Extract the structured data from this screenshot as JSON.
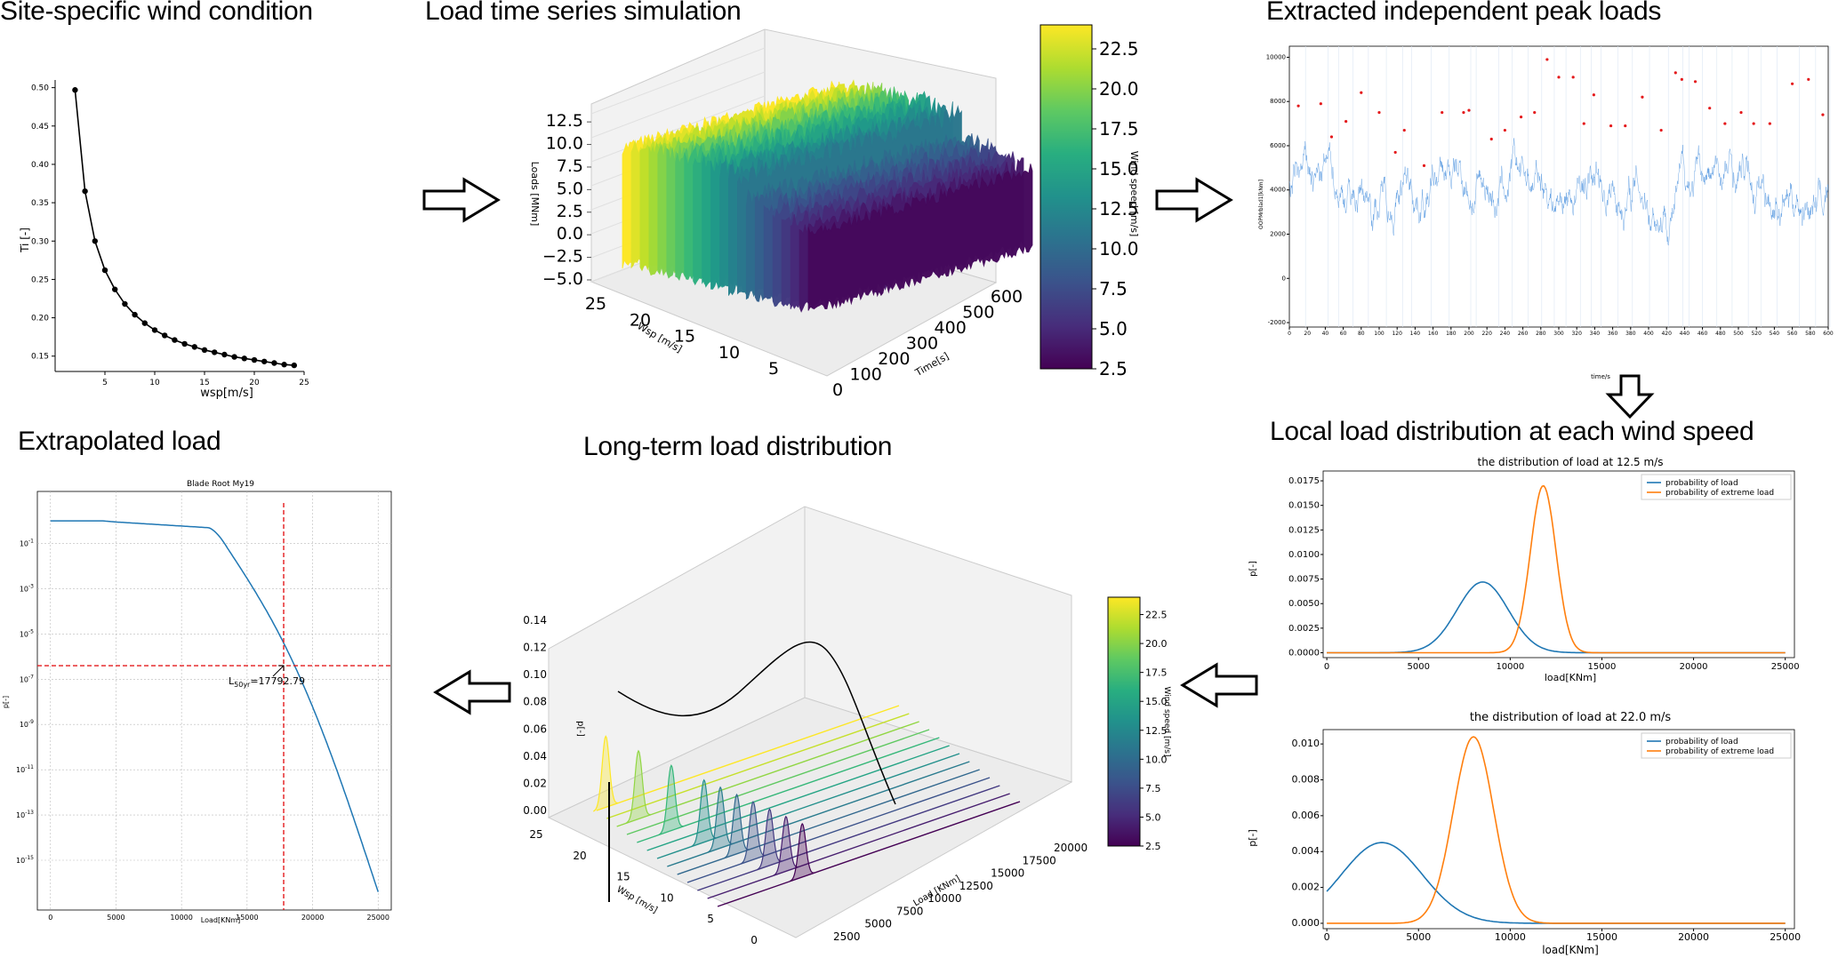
{
  "titles": {
    "wind": "Site-specific wind condition",
    "timeseries": "Load time series simulation",
    "peaks": "Extracted independent peak loads",
    "local": "Local load distribution at each wind speed",
    "longterm": "Long-term load distribution",
    "extrap": "Extrapolated load"
  },
  "wind_chart": {
    "type": "line",
    "xlabel": "wsp[m/s]",
    "ylabel": "Ti [-]",
    "xlim": [
      0,
      25
    ],
    "ylim": [
      0.13,
      0.51
    ],
    "xticks": [
      "5",
      "10",
      "15",
      "20",
      "25"
    ],
    "yticks": [
      "0.15",
      "0.20",
      "0.25",
      "0.30",
      "0.35",
      "0.40",
      "0.45",
      "0.50"
    ],
    "x": [
      2,
      3,
      4,
      5,
      6,
      7,
      8,
      9,
      10,
      11,
      12,
      13,
      14,
      15,
      16,
      17,
      18,
      19,
      20,
      21,
      22,
      23,
      24
    ],
    "y": [
      0.497,
      0.365,
      0.3,
      0.262,
      0.237,
      0.218,
      0.204,
      0.193,
      0.184,
      0.177,
      0.171,
      0.166,
      0.162,
      0.158,
      0.155,
      0.152,
      0.149,
      0.147,
      0.145,
      0.143,
      0.141,
      0.139,
      0.138
    ]
  },
  "timeseries_chart": {
    "type": "area",
    "ylabel": "Loads [MNm]",
    "xlabel": "Time[s]",
    "wsp_label": "Wsp [m/s]",
    "zticks": [
      "12.5",
      "10.0",
      "7.5",
      "5.0",
      "2.5",
      "0.0",
      "−2.5",
      "−5.0"
    ],
    "time_ticks": [
      "0",
      "100",
      "200",
      "300",
      "400",
      "500",
      "600"
    ],
    "wsp_ticks": [
      "25",
      "20",
      "15",
      "10",
      "5"
    ],
    "colorbar_label": "Wind speed [m/s]",
    "colorbar_ticks": [
      "22.5",
      "20.0",
      "17.5",
      "15.0",
      "12.5",
      "10.0",
      "7.5",
      "5.0",
      "2.5"
    ],
    "colorbar_range": [
      2.5,
      24
    ]
  },
  "peaks_chart": {
    "type": "scatter",
    "ylabel": "OOPMrblad1[kNm]",
    "xlabel": "time/s",
    "yticks": [
      "10000",
      "8000",
      "6000",
      "4000",
      "2000",
      "0",
      "-2000"
    ],
    "xticks": [
      "0",
      "20",
      "40",
      "60",
      "80",
      "100",
      "120",
      "140",
      "160",
      "180",
      "200",
      "220",
      "240",
      "260",
      "280",
      "300",
      "320",
      "340",
      "360",
      "380",
      "400",
      "420",
      "440",
      "460",
      "480",
      "500",
      "520",
      "540",
      "560",
      "580",
      "600"
    ],
    "ylim": [
      -2200,
      10500
    ],
    "xlim": [
      0,
      600
    ],
    "peaks_x": [
      10,
      35,
      47,
      63,
      80,
      100,
      118,
      128,
      150,
      170,
      194,
      200,
      225,
      240,
      258,
      273,
      287,
      300,
      316,
      328,
      339,
      358,
      374,
      393,
      414,
      430,
      437,
      452,
      468,
      485,
      503,
      517,
      535,
      560,
      578,
      594
    ],
    "peaks_y": [
      7800,
      7900,
      6400,
      7100,
      8400,
      7500,
      5700,
      6700,
      5100,
      7500,
      7500,
      7600,
      6300,
      6700,
      7300,
      7500,
      9900,
      9100,
      9100,
      7000,
      8300,
      6900,
      6900,
      8200,
      6700,
      9300,
      9000,
      8900,
      7700,
      7000,
      7500,
      7000,
      7000,
      8800,
      9000,
      7400
    ]
  },
  "local12_chart": {
    "type": "line",
    "title": "the distribution of load at 12.5 m/s",
    "xlabel": "load[KNm]",
    "ylabel": "p[-]",
    "xticks": [
      "0",
      "5000",
      "10000",
      "15000",
      "20000",
      "25000"
    ],
    "yticks": [
      "0.0175",
      "0.0150",
      "0.0125",
      "0.0100",
      "0.0075",
      "0.0050",
      "0.0025",
      "0.0000"
    ],
    "xlim": [
      -200,
      25500
    ],
    "ylim": [
      -0.0005,
      0.0185
    ],
    "series": [
      {
        "name": "probability of load",
        "mean": 8500,
        "sd": 1400,
        "peak": 0.0072
      },
      {
        "name": "probability of extreme load",
        "mean": 11800,
        "sd": 700,
        "peak": 0.017
      }
    ],
    "colors": [
      "#1f77b4",
      "#ff7f0e"
    ]
  },
  "local22_chart": {
    "type": "line",
    "title": "the distribution of load at 22.0 m/s",
    "xlabel": "load[KNm]",
    "ylabel": "p[-]",
    "xticks": [
      "0",
      "5000",
      "10000",
      "15000",
      "20000",
      "25000"
    ],
    "yticks": [
      "0.010",
      "0.008",
      "0.006",
      "0.004",
      "0.002",
      "0.000"
    ],
    "xlim": [
      -200,
      25500
    ],
    "ylim": [
      -0.0003,
      0.0108
    ],
    "series": [
      {
        "name": "probability of load",
        "mean": 3000,
        "sd": 2200,
        "peak": 0.0045
      },
      {
        "name": "probability of extreme load",
        "mean": 8000,
        "sd": 1100,
        "peak": 0.0104
      }
    ],
    "colors": [
      "#1f77b4",
      "#ff7f0e"
    ]
  },
  "longterm_chart": {
    "type": "line",
    "zlabel": "p[-]",
    "xlabel": "Load [KNm]",
    "wsp_label": "Wsp [m/s]",
    "zticks": [
      "0.14",
      "0.12",
      "0.10",
      "0.08",
      "0.06",
      "0.04",
      "0.02",
      "0.00"
    ],
    "wsp_ticks": [
      "25",
      "20",
      "15",
      "10",
      "5",
      "0"
    ],
    "load_ticks": [
      "2500",
      "5000",
      "7500",
      "10000",
      "12500",
      "15000",
      "17500",
      "20000"
    ],
    "colorbar_label": "Wind speed [m/s]",
    "colorbar_ticks": [
      "22.5",
      "20.0",
      "17.5",
      "15.0",
      "12.5",
      "10.0",
      "7.5",
      "5.0",
      "2.5"
    ],
    "colorbar_range": [
      2.5,
      24
    ]
  },
  "extrap_chart": {
    "type": "line",
    "title": "Blade Root My19",
    "xlabel": "Load[KNm]",
    "ylabel": "p[-]",
    "xticks": [
      "0",
      "5000",
      "10000",
      "15000",
      "20000",
      "25000"
    ],
    "yticks_exp": [
      "-1",
      "-3",
      "-5",
      "-7",
      "-9",
      "-11",
      "-13",
      "-15"
    ],
    "ytick_base": "10",
    "annotation_prefix": "L",
    "annotation_sub": "50yr",
    "annotation_value": "=17792.79",
    "threshold_load": 17792.79,
    "threshold_p_log": -6.4,
    "xlim": [
      -1000,
      26000
    ],
    "ylim_log": [
      -17.2,
      1.3
    ]
  }
}
